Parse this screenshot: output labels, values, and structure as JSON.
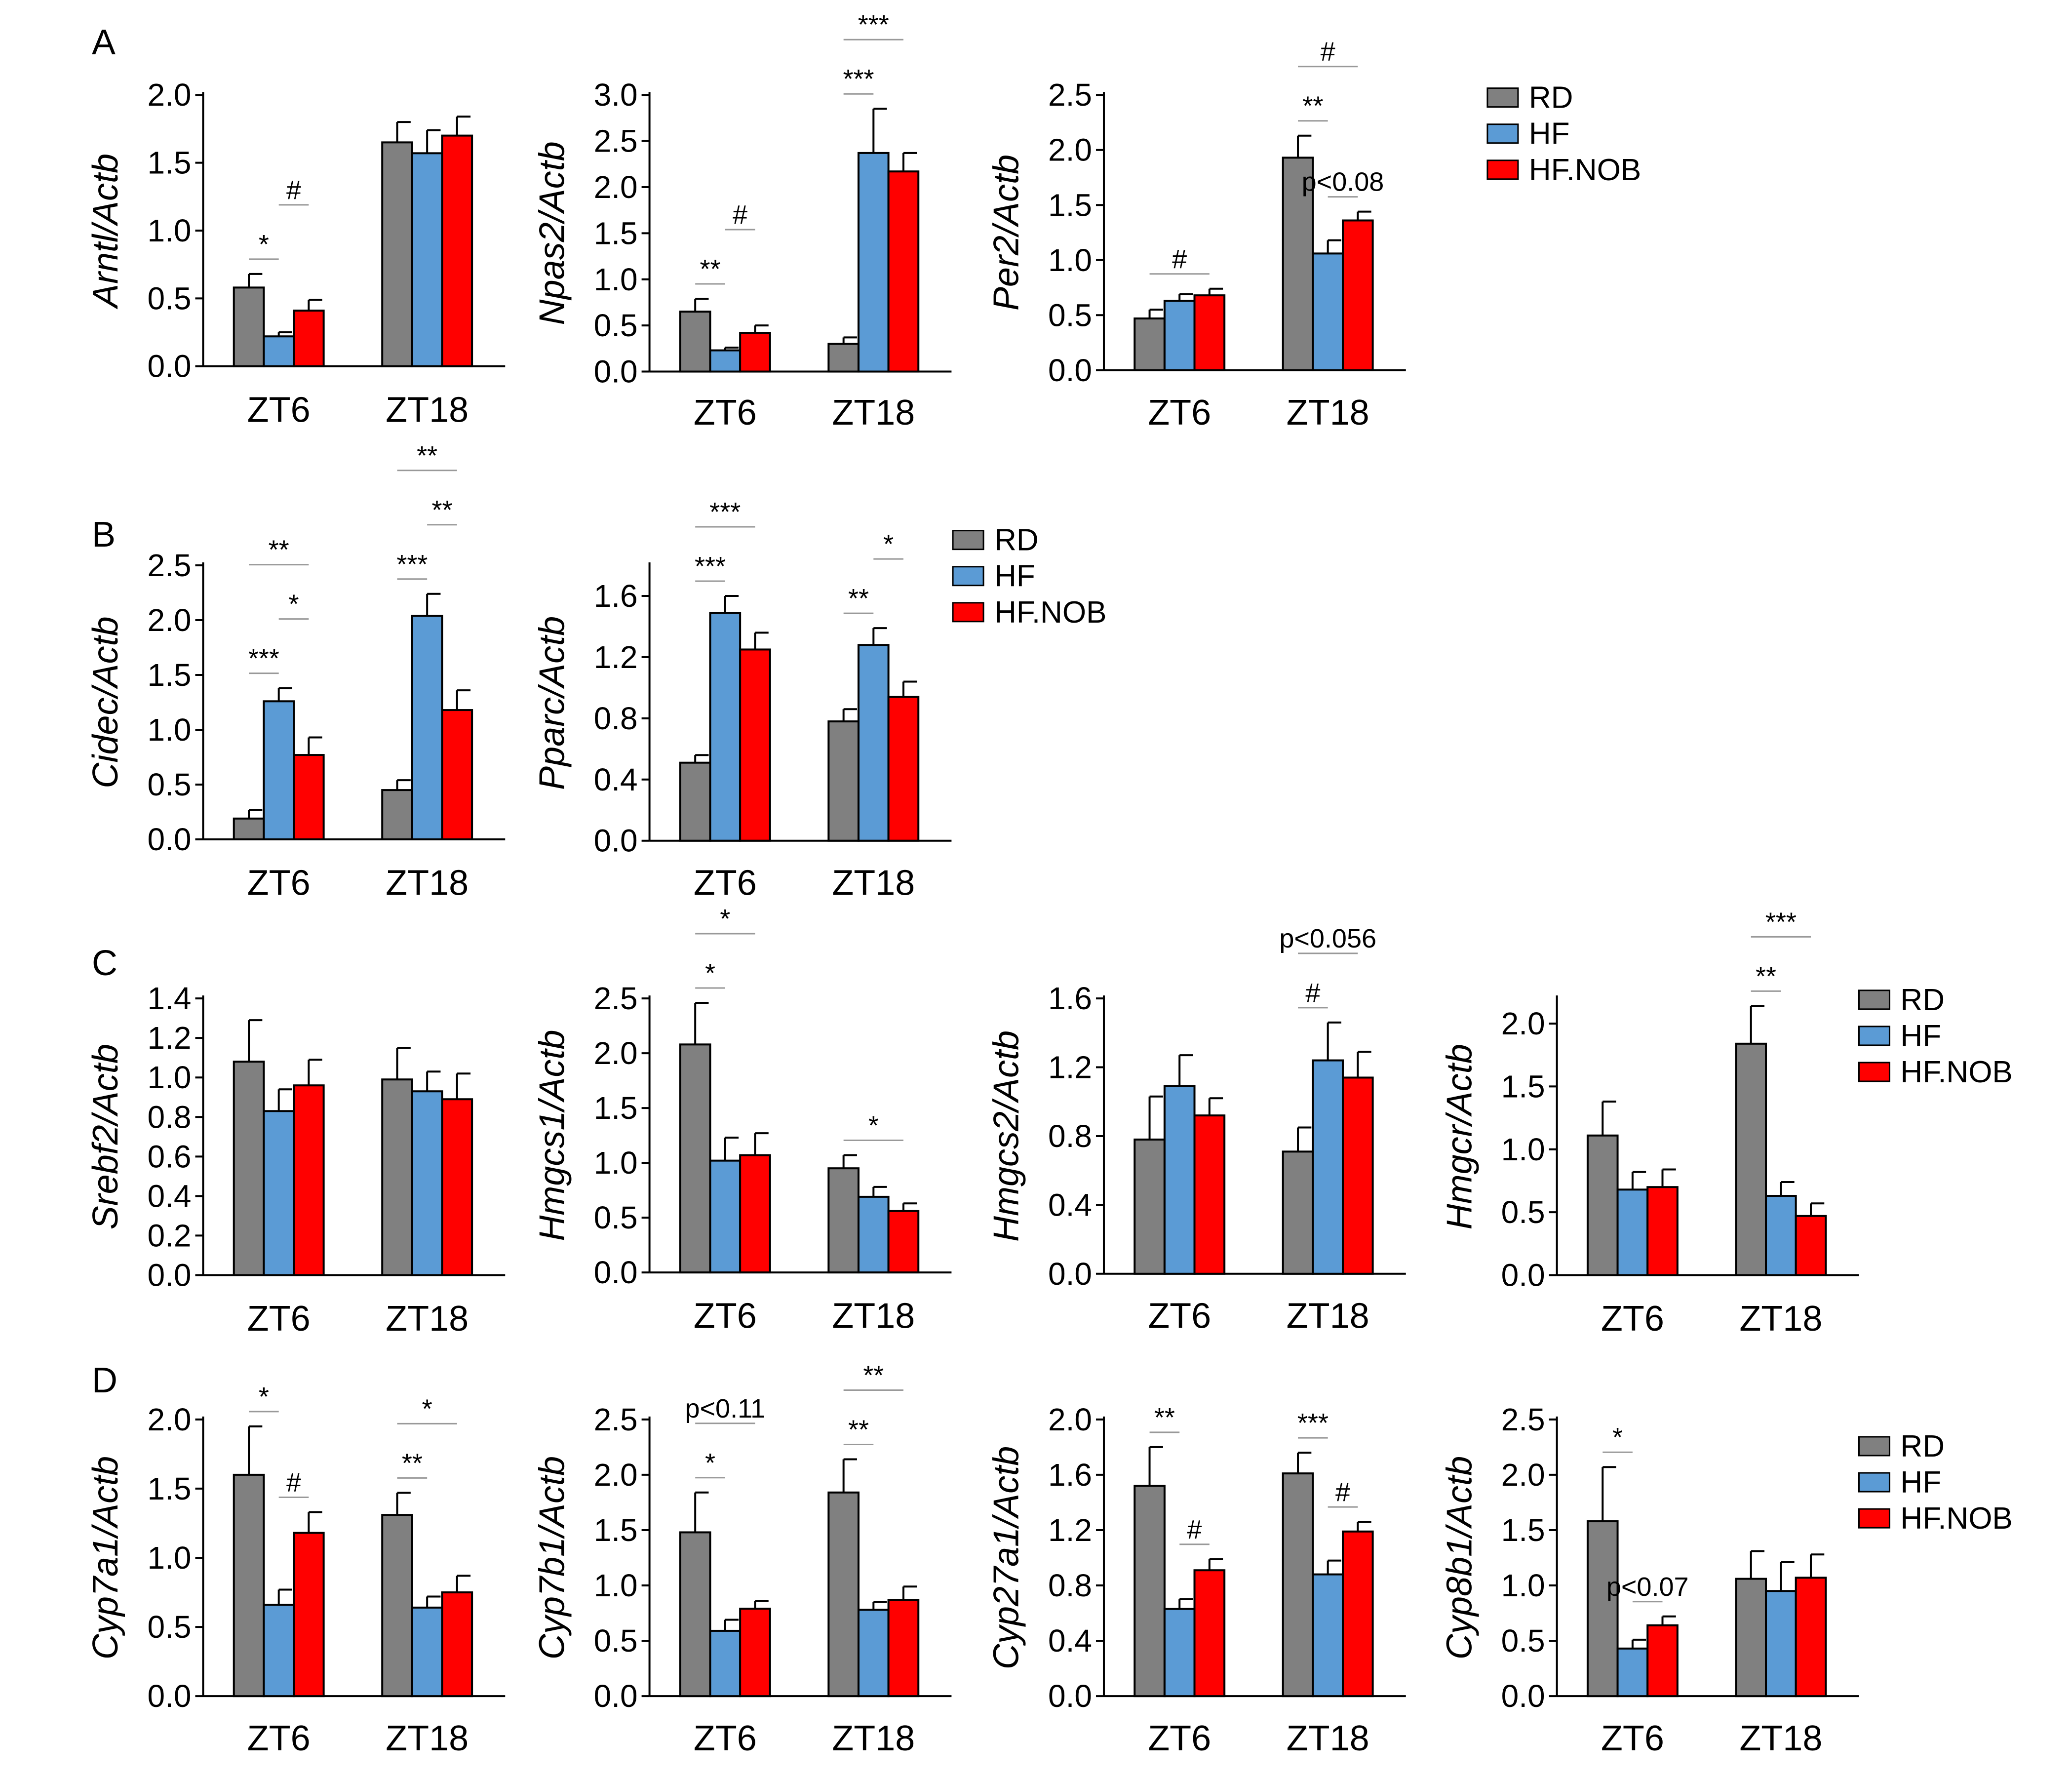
{
  "figure": {
    "series": [
      {
        "name": "RD",
        "color": "#808080"
      },
      {
        "name": "HF",
        "color": "#5B9BD5"
      },
      {
        "name": "HF.NOB",
        "color": "#FF0000"
      }
    ],
    "panel_letters": [
      "A",
      "B",
      "C",
      "D"
    ]
  },
  "chart_data": [
    {
      "type": "bar",
      "panel": "A",
      "ylabel": "Arntl/Actb",
      "categories": [
        "ZT6",
        "ZT18"
      ],
      "ylim": [
        0,
        2.0
      ],
      "yticks": [
        0.0,
        0.5,
        1.0,
        1.5,
        2.0
      ],
      "tick_format": 1,
      "series": [
        {
          "name": "RD",
          "values": [
            0.58,
            1.65
          ],
          "errors": [
            0.1,
            0.15
          ]
        },
        {
          "name": "HF",
          "values": [
            0.22,
            1.57
          ],
          "errors": [
            0.03,
            0.17
          ]
        },
        {
          "name": "HF.NOB",
          "values": [
            0.41,
            1.7
          ],
          "errors": [
            0.08,
            0.14
          ]
        }
      ],
      "annotations": [
        {
          "text": "*",
          "from": [
            0,
            0
          ],
          "to": [
            0,
            1
          ]
        },
        {
          "text": "#",
          "from": [
            0,
            1
          ],
          "to": [
            0,
            2
          ]
        }
      ]
    },
    {
      "type": "bar",
      "panel": "A",
      "ylabel": "Npas2/Actb",
      "categories": [
        "ZT6",
        "ZT18"
      ],
      "ylim": [
        0,
        3.0
      ],
      "yticks": [
        0.0,
        0.5,
        1.0,
        1.5,
        2.0,
        2.5,
        3.0
      ],
      "tick_format": 1,
      "series": [
        {
          "name": "RD",
          "values": [
            0.65,
            0.3
          ],
          "errors": [
            0.14,
            0.07
          ]
        },
        {
          "name": "HF",
          "values": [
            0.23,
            2.37
          ],
          "errors": [
            0.03,
            0.48
          ]
        },
        {
          "name": "HF.NOB",
          "values": [
            0.42,
            2.17
          ],
          "errors": [
            0.08,
            0.2
          ]
        }
      ],
      "annotations": [
        {
          "text": "**",
          "from": [
            0,
            0
          ],
          "to": [
            0,
            1
          ]
        },
        {
          "text": "#",
          "from": [
            0,
            1
          ],
          "to": [
            0,
            2
          ]
        },
        {
          "text": "***",
          "from": [
            1,
            0
          ],
          "to": [
            1,
            1
          ]
        },
        {
          "text": "***",
          "from": [
            1,
            0
          ],
          "to": [
            1,
            2
          ]
        }
      ]
    },
    {
      "type": "bar",
      "panel": "A",
      "ylabel": "Per2/Actb",
      "categories": [
        "ZT6",
        "ZT18"
      ],
      "ylim": [
        0,
        2.5
      ],
      "yticks": [
        0.0,
        0.5,
        1.0,
        1.5,
        2.0,
        2.5
      ],
      "tick_format": 1,
      "series": [
        {
          "name": "RD",
          "values": [
            0.47,
            1.93
          ],
          "errors": [
            0.08,
            0.2
          ]
        },
        {
          "name": "HF",
          "values": [
            0.63,
            1.06
          ],
          "errors": [
            0.06,
            0.12
          ]
        },
        {
          "name": "HF.NOB",
          "values": [
            0.68,
            1.36
          ],
          "errors": [
            0.06,
            0.08
          ]
        }
      ],
      "annotations": [
        {
          "text": "#",
          "from": [
            0,
            0
          ],
          "to": [
            0,
            2
          ]
        },
        {
          "text": "**",
          "from": [
            1,
            0
          ],
          "to": [
            1,
            1
          ]
        },
        {
          "text": "#",
          "from": [
            1,
            0
          ],
          "to": [
            1,
            2
          ]
        },
        {
          "text": "p<0.08",
          "from": [
            1,
            1
          ],
          "to": [
            1,
            2
          ]
        }
      ]
    },
    {
      "type": "bar",
      "panel": "B",
      "ylabel": "Cidec/Actb",
      "categories": [
        "ZT6",
        "ZT18"
      ],
      "ylim": [
        0,
        2.5
      ],
      "yticks": [
        0.0,
        0.5,
        1.0,
        1.5,
        2.0,
        2.5
      ],
      "tick_format": 1,
      "series": [
        {
          "name": "RD",
          "values": [
            0.19,
            0.45
          ],
          "errors": [
            0.08,
            0.09
          ]
        },
        {
          "name": "HF",
          "values": [
            1.26,
            2.04
          ],
          "errors": [
            0.12,
            0.2
          ]
        },
        {
          "name": "HF.NOB",
          "values": [
            0.77,
            1.18
          ],
          "errors": [
            0.16,
            0.18
          ]
        }
      ],
      "annotations": [
        {
          "text": "***",
          "from": [
            0,
            0
          ],
          "to": [
            0,
            1
          ]
        },
        {
          "text": "*",
          "from": [
            0,
            1
          ],
          "to": [
            0,
            2
          ]
        },
        {
          "text": "**",
          "from": [
            0,
            0
          ],
          "to": [
            0,
            2
          ]
        },
        {
          "text": "***",
          "from": [
            1,
            0
          ],
          "to": [
            1,
            1
          ]
        },
        {
          "text": "**",
          "from": [
            1,
            1
          ],
          "to": [
            1,
            2
          ]
        },
        {
          "text": "**",
          "from": [
            1,
            0
          ],
          "to": [
            1,
            2
          ]
        }
      ]
    },
    {
      "type": "bar",
      "panel": "B",
      "ylabel": "Pparc/Actb",
      "categories": [
        "ZT6",
        "ZT18"
      ],
      "ylim": [
        0,
        1.8
      ],
      "yticks": [
        0.0,
        0.4,
        0.8,
        1.2,
        1.6
      ],
      "tick_format": 1,
      "series": [
        {
          "name": "RD",
          "values": [
            0.51,
            0.78
          ],
          "errors": [
            0.05,
            0.08
          ]
        },
        {
          "name": "HF",
          "values": [
            1.49,
            1.28
          ],
          "errors": [
            0.11,
            0.11
          ]
        },
        {
          "name": "HF.NOB",
          "values": [
            1.25,
            0.94
          ],
          "errors": [
            0.11,
            0.1
          ]
        }
      ],
      "annotations": [
        {
          "text": "***",
          "from": [
            0,
            0
          ],
          "to": [
            0,
            1
          ]
        },
        {
          "text": "***",
          "from": [
            0,
            0
          ],
          "to": [
            0,
            2
          ]
        },
        {
          "text": "**",
          "from": [
            1,
            0
          ],
          "to": [
            1,
            1
          ]
        },
        {
          "text": "*",
          "from": [
            1,
            1
          ],
          "to": [
            1,
            2
          ]
        }
      ]
    },
    {
      "type": "bar",
      "panel": "C",
      "ylabel": "Srebf2/Actb",
      "categories": [
        "ZT6",
        "ZT18"
      ],
      "ylim": [
        0,
        1.4
      ],
      "yticks": [
        0.0,
        0.2,
        0.4,
        0.6,
        0.8,
        1.0,
        1.2,
        1.4
      ],
      "tick_format": 1,
      "series": [
        {
          "name": "RD",
          "values": [
            1.08,
            0.99
          ],
          "errors": [
            0.21,
            0.16
          ]
        },
        {
          "name": "HF",
          "values": [
            0.83,
            0.93
          ],
          "errors": [
            0.11,
            0.1
          ]
        },
        {
          "name": "HF.NOB",
          "values": [
            0.96,
            0.89
          ],
          "errors": [
            0.13,
            0.13
          ]
        }
      ],
      "annotations": []
    },
    {
      "type": "bar",
      "panel": "C",
      "ylabel": "Hmgcs1/Actb",
      "categories": [
        "ZT6",
        "ZT18"
      ],
      "ylim": [
        0,
        2.5
      ],
      "yticks": [
        0.0,
        0.5,
        1.0,
        1.5,
        2.0,
        2.5
      ],
      "tick_format": 1,
      "series": [
        {
          "name": "RD",
          "values": [
            2.08,
            0.95
          ],
          "errors": [
            0.38,
            0.12
          ]
        },
        {
          "name": "HF",
          "values": [
            1.02,
            0.69
          ],
          "errors": [
            0.21,
            0.09
          ]
        },
        {
          "name": "HF.NOB",
          "values": [
            1.07,
            0.56
          ],
          "errors": [
            0.2,
            0.07
          ]
        }
      ],
      "annotations": [
        {
          "text": "*",
          "from": [
            0,
            0
          ],
          "to": [
            0,
            1
          ]
        },
        {
          "text": "*",
          "from": [
            0,
            0
          ],
          "to": [
            0,
            2
          ]
        },
        {
          "text": "*",
          "from": [
            1,
            0
          ],
          "to": [
            1,
            2
          ]
        }
      ]
    },
    {
      "type": "bar",
      "panel": "C",
      "ylabel": "Hmgcs2/Actb",
      "categories": [
        "ZT6",
        "ZT18"
      ],
      "ylim": [
        0,
        1.6
      ],
      "yticks": [
        0.0,
        0.4,
        0.8,
        1.2,
        1.6
      ],
      "tick_format": 1,
      "series": [
        {
          "name": "RD",
          "values": [
            0.78,
            0.71
          ],
          "errors": [
            0.25,
            0.14
          ]
        },
        {
          "name": "HF",
          "values": [
            1.09,
            1.24
          ],
          "errors": [
            0.18,
            0.22
          ]
        },
        {
          "name": "HF.NOB",
          "values": [
            0.92,
            1.14
          ],
          "errors": [
            0.1,
            0.15
          ]
        }
      ],
      "annotations": [
        {
          "text": "#",
          "from": [
            1,
            0
          ],
          "to": [
            1,
            1
          ]
        },
        {
          "text": "p<0.056",
          "from": [
            1,
            0
          ],
          "to": [
            1,
            2
          ]
        }
      ]
    },
    {
      "type": "bar",
      "panel": "C",
      "ylabel": "Hmgcr/Actb",
      "categories": [
        "ZT6",
        "ZT18"
      ],
      "ylim": [
        0,
        2.2
      ],
      "yticks": [
        0.0,
        0.5,
        1.0,
        1.5,
        2.0
      ],
      "tick_format": 1,
      "series": [
        {
          "name": "RD",
          "values": [
            1.11,
            1.84
          ],
          "errors": [
            0.27,
            0.3
          ]
        },
        {
          "name": "HF",
          "values": [
            0.68,
            0.63
          ],
          "errors": [
            0.14,
            0.11
          ]
        },
        {
          "name": "HF.NOB",
          "values": [
            0.7,
            0.47
          ],
          "errors": [
            0.14,
            0.1
          ]
        }
      ],
      "annotations": [
        {
          "text": "**",
          "from": [
            1,
            0
          ],
          "to": [
            1,
            1
          ]
        },
        {
          "text": "***",
          "from": [
            1,
            0
          ],
          "to": [
            1,
            2
          ]
        }
      ]
    },
    {
      "type": "bar",
      "panel": "D",
      "ylabel": "Cyp7a1/Actb",
      "categories": [
        "ZT6",
        "ZT18"
      ],
      "ylim": [
        0,
        2.0
      ],
      "yticks": [
        0.0,
        0.5,
        1.0,
        1.5,
        2.0
      ],
      "tick_format": 1,
      "series": [
        {
          "name": "RD",
          "values": [
            1.6,
            1.31
          ],
          "errors": [
            0.35,
            0.16
          ]
        },
        {
          "name": "HF",
          "values": [
            0.66,
            0.64
          ],
          "errors": [
            0.11,
            0.08
          ]
        },
        {
          "name": "HF.NOB",
          "values": [
            1.18,
            0.75
          ],
          "errors": [
            0.15,
            0.12
          ]
        }
      ],
      "annotations": [
        {
          "text": "*",
          "from": [
            0,
            0
          ],
          "to": [
            0,
            1
          ]
        },
        {
          "text": "#",
          "from": [
            0,
            1
          ],
          "to": [
            0,
            2
          ]
        },
        {
          "text": "**",
          "from": [
            1,
            0
          ],
          "to": [
            1,
            1
          ]
        },
        {
          "text": "*",
          "from": [
            1,
            0
          ],
          "to": [
            1,
            2
          ]
        }
      ]
    },
    {
      "type": "bar",
      "panel": "D",
      "ylabel": "Cyp7b1/Actb",
      "categories": [
        "ZT6",
        "ZT18"
      ],
      "ylim": [
        0,
        2.5
      ],
      "yticks": [
        0.0,
        0.5,
        1.0,
        1.5,
        2.0,
        2.5
      ],
      "tick_format": 1,
      "series": [
        {
          "name": "RD",
          "values": [
            1.48,
            1.84
          ],
          "errors": [
            0.36,
            0.3
          ]
        },
        {
          "name": "HF",
          "values": [
            0.59,
            0.78
          ],
          "errors": [
            0.1,
            0.07
          ]
        },
        {
          "name": "HF.NOB",
          "values": [
            0.79,
            0.87
          ],
          "errors": [
            0.07,
            0.12
          ]
        }
      ],
      "annotations": [
        {
          "text": "*",
          "from": [
            0,
            0
          ],
          "to": [
            0,
            1
          ]
        },
        {
          "text": "p<0.11",
          "from": [
            0,
            0
          ],
          "to": [
            0,
            2
          ]
        },
        {
          "text": "**",
          "from": [
            1,
            0
          ],
          "to": [
            1,
            1
          ]
        },
        {
          "text": "**",
          "from": [
            1,
            0
          ],
          "to": [
            1,
            2
          ]
        }
      ]
    },
    {
      "type": "bar",
      "panel": "D",
      "ylabel": "Cyp27a1/Actb",
      "categories": [
        "ZT6",
        "ZT18"
      ],
      "ylim": [
        0,
        2.0
      ],
      "yticks": [
        0.0,
        0.4,
        0.8,
        1.2,
        1.6,
        2.0
      ],
      "tick_format": 1,
      "series": [
        {
          "name": "RD",
          "values": [
            1.52,
            1.61
          ],
          "errors": [
            0.28,
            0.15
          ]
        },
        {
          "name": "HF",
          "values": [
            0.63,
            0.88
          ],
          "errors": [
            0.07,
            0.1
          ]
        },
        {
          "name": "HF.NOB",
          "values": [
            0.91,
            1.19
          ],
          "errors": [
            0.08,
            0.07
          ]
        }
      ],
      "annotations": [
        {
          "text": "**",
          "from": [
            0,
            0
          ],
          "to": [
            0,
            1
          ]
        },
        {
          "text": "#",
          "from": [
            0,
            1
          ],
          "to": [
            0,
            2
          ]
        },
        {
          "text": "***",
          "from": [
            1,
            0
          ],
          "to": [
            1,
            1
          ]
        },
        {
          "text": "#",
          "from": [
            1,
            1
          ],
          "to": [
            1,
            2
          ]
        }
      ]
    },
    {
      "type": "bar",
      "panel": "D",
      "ylabel": "Cyp8b1/Actb",
      "categories": [
        "ZT6",
        "ZT18"
      ],
      "ylim": [
        0,
        2.5
      ],
      "yticks": [
        0.0,
        0.5,
        1.0,
        1.5,
        2.0,
        2.5
      ],
      "tick_format": 1,
      "series": [
        {
          "name": "RD",
          "values": [
            1.58,
            1.06
          ],
          "errors": [
            0.49,
            0.25
          ]
        },
        {
          "name": "HF",
          "values": [
            0.43,
            0.95
          ],
          "errors": [
            0.08,
            0.26
          ]
        },
        {
          "name": "HF.NOB",
          "values": [
            0.64,
            1.07
          ],
          "errors": [
            0.08,
            0.21
          ]
        }
      ],
      "annotations": [
        {
          "text": "*",
          "from": [
            0,
            0
          ],
          "to": [
            0,
            1
          ]
        },
        {
          "text": "p<0.07",
          "from": [
            0,
            1
          ],
          "to": [
            0,
            2
          ]
        }
      ]
    }
  ]
}
